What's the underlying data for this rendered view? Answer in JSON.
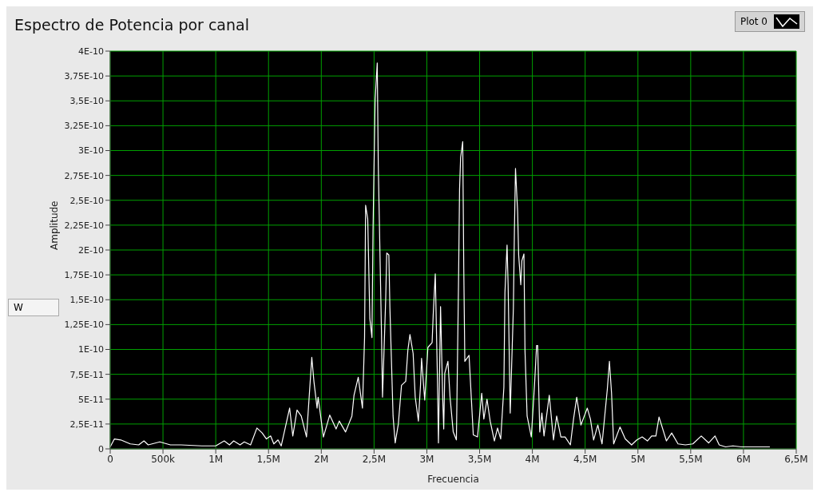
{
  "chart_data": {
    "type": "line",
    "title": "Espectro de Potencia por canal",
    "xlabel": "Frecuencia",
    "ylabel": "Amplitude",
    "annotations": [
      "W"
    ],
    "x": [
      0,
      40000,
      100000,
      190000,
      270000,
      320000,
      360000,
      470000,
      570000,
      670000,
      870000,
      1000000,
      1080000,
      1130000,
      1170000,
      1230000,
      1270000,
      1330000,
      1390000,
      1440000,
      1480000,
      1520000,
      1550000,
      1590000,
      1620000,
      1700000,
      1730000,
      1770000,
      1810000,
      1860000,
      1910000,
      1930000,
      1960000,
      1970000,
      2020000,
      2080000,
      2140000,
      2170000,
      2230000,
      2260000,
      2290000,
      2310000,
      2350000,
      2390000,
      2410000,
      2420000,
      2440000,
      2460000,
      2480000,
      2490000,
      2510000,
      2530000,
      2540000,
      2570000,
      2580000,
      2610000,
      2620000,
      2640000,
      2650000,
      2680000,
      2700000,
      2730000,
      2760000,
      2800000,
      2820000,
      2840000,
      2870000,
      2890000,
      2920000,
      2940000,
      2950000,
      2980000,
      3010000,
      3050000,
      3060000,
      3080000,
      3100000,
      3110000,
      3130000,
      3150000,
      3160000,
      3170000,
      3200000,
      3220000,
      3250000,
      3280000,
      3300000,
      3310000,
      3320000,
      3340000,
      3350000,
      3360000,
      3400000,
      3440000,
      3480000,
      3520000,
      3540000,
      3570000,
      3600000,
      3640000,
      3670000,
      3700000,
      3730000,
      3740000,
      3760000,
      3770000,
      3790000,
      3820000,
      3830000,
      3840000,
      3860000,
      3870000,
      3890000,
      3900000,
      3920000,
      3930000,
      3950000,
      3990000,
      4020000,
      4040000,
      4050000,
      4070000,
      4090000,
      4110000,
      4160000,
      4200000,
      4230000,
      4270000,
      4310000,
      4360000,
      4390000,
      4420000,
      4460000,
      4520000,
      4550000,
      4580000,
      4620000,
      4660000,
      4710000,
      4730000,
      4750000,
      4770000,
      4830000,
      4880000,
      4940000,
      4990000,
      5040000,
      5090000,
      5130000,
      5170000,
      5200000,
      5270000,
      5320000,
      5380000,
      5450000,
      5520000,
      5600000,
      5670000,
      5730000,
      5770000,
      5830000,
      5900000,
      5980000,
      6250000
    ],
    "series": [
      {
        "name": "Plot 0",
        "color": "#ffffff",
        "values": [
          2e-12,
          1e-11,
          9e-12,
          5e-12,
          4e-12,
          8e-12,
          4e-12,
          7e-12,
          4e-12,
          4e-12,
          3e-12,
          3e-12,
          8e-12,
          4e-12,
          8e-12,
          4e-12,
          7e-12,
          4e-12,
          2.1e-11,
          1.6e-11,
          1e-11,
          1.3e-11,
          5e-12,
          9e-12,
          3e-12,
          4.1e-11,
          1.3e-11,
          3.9e-11,
          3.3e-11,
          1.2e-11,
          9.2e-11,
          6.8e-11,
          4.1e-11,
          5.2e-11,
          1.2e-11,
          3.4e-11,
          2e-11,
          2.8e-11,
          1.7e-11,
          2.5e-11,
          3.3e-11,
          5.4e-11,
          7.2e-11,
          4.1e-11,
          1.12e-10,
          2.45e-10,
          2.31e-10,
          1.31e-10,
          1.12e-10,
          2.19e-10,
          3.51e-10,
          3.88e-10,
          2.85e-10,
          1.18e-10,
          5.2e-11,
          1.5e-10,
          1.97e-10,
          1.95e-10,
          1.42e-10,
          3.3e-11,
          6e-12,
          2.5e-11,
          6.4e-11,
          6.8e-11,
          9.9e-11,
          1.15e-10,
          9.6e-11,
          5.2e-11,
          2.8e-11,
          6.4e-11,
          9.1e-11,
          4.9e-11,
          1.02e-10,
          1.07e-10,
          1.34e-10,
          1.76e-10,
          7.2e-11,
          6e-12,
          1.43e-10,
          5.2e-11,
          2e-11,
          7.6e-11,
          8.8e-11,
          5.2e-11,
          1.7e-11,
          9e-12,
          1.65e-10,
          2.61e-10,
          2.93e-10,
          3.09e-10,
          1.81e-10,
          8.8e-11,
          9.4e-11,
          1.4e-11,
          1.2e-11,
          5.6e-11,
          3e-11,
          5e-11,
          2.8e-11,
          8e-12,
          2.1e-11,
          1e-11,
          6.2e-11,
          1.57e-10,
          2.05e-10,
          1.65e-10,
          3.6e-11,
          1.42e-10,
          2.21e-10,
          2.82e-10,
          2.39e-10,
          1.95e-10,
          1.65e-10,
          1.89e-10,
          1.96e-10,
          9.9e-11,
          3.3e-11,
          1.2e-11,
          6.4e-11,
          1.04e-10,
          1.04e-10,
          1.7e-11,
          3.6e-11,
          1.3e-11,
          5.4e-11,
          9e-12,
          3.3e-11,
          1.2e-11,
          1.2e-11,
          4e-12,
          3e-11,
          5.2e-11,
          2.4e-11,
          4.1e-11,
          3e-11,
          9e-12,
          2.4e-11,
          5e-12,
          6e-11,
          8.8e-11,
          5.6e-11,
          5e-12,
          2.2e-11,
          1e-11,
          4e-12,
          9e-12,
          1.2e-11,
          8e-12,
          1.3e-11,
          1.3e-11,
          3.2e-11,
          8e-12,
          1.6e-11,
          5e-12,
          4e-12,
          5e-12,
          1.3e-11,
          6e-12,
          1.3e-11,
          4e-12,
          2e-12,
          3e-12,
          2e-12,
          2e-12
        ]
      }
    ],
    "xlim": [
      0,
      6500000
    ],
    "xticks": [
      0,
      {
        "value": 500000,
        "label": "500k"
      },
      {
        "value": 1000000,
        "label": "1M"
      },
      {
        "value": 1500000,
        "label": "1,5M"
      },
      {
        "value": 2000000,
        "label": "2M"
      },
      {
        "value": 2500000,
        "label": "2,5M"
      },
      {
        "value": 3000000,
        "label": "3M"
      },
      {
        "value": 3500000,
        "label": "3,5M"
      },
      {
        "value": 4000000,
        "label": "4M"
      },
      {
        "value": 4500000,
        "label": "4,5M"
      },
      {
        "value": 5000000,
        "label": "5M"
      },
      {
        "value": 5500000,
        "label": "5,5M"
      },
      {
        "value": 6000000,
        "label": "6M"
      },
      {
        "value": 6500000,
        "label": "6,5M"
      }
    ],
    "ylim": [
      0,
      4e-10
    ],
    "yticks": [
      0,
      {
        "value": 2.5e-11,
        "label": "2,5E-11"
      },
      {
        "value": 5e-11,
        "label": "5E-11"
      },
      {
        "value": 7.5e-11,
        "label": "7,5E-11"
      },
      {
        "value": 1e-10,
        "label": "1E-10"
      },
      {
        "value": 1.25e-10,
        "label": "1,25E-10"
      },
      {
        "value": 1.5e-10,
        "label": "1,5E-10"
      },
      {
        "value": 1.75e-10,
        "label": "1,75E-10"
      },
      {
        "value": 2e-10,
        "label": "2E-10"
      },
      {
        "value": 2.25e-10,
        "label": "2,25E-10"
      },
      {
        "value": 2.5e-10,
        "label": "2,5E-10"
      },
      {
        "value": 2.75e-10,
        "label": "2,75E-10"
      },
      {
        "value": 3e-10,
        "label": "3E-10"
      },
      {
        "value": 3.25e-10,
        "label": "3,25E-10"
      },
      {
        "value": 3.5e-10,
        "label": "3,5E-10"
      },
      {
        "value": 3.75e-10,
        "label": "3,75E-10"
      },
      {
        "value": 4e-10,
        "label": "4E-10"
      }
    ],
    "grid": true,
    "legend": "top right"
  }
}
